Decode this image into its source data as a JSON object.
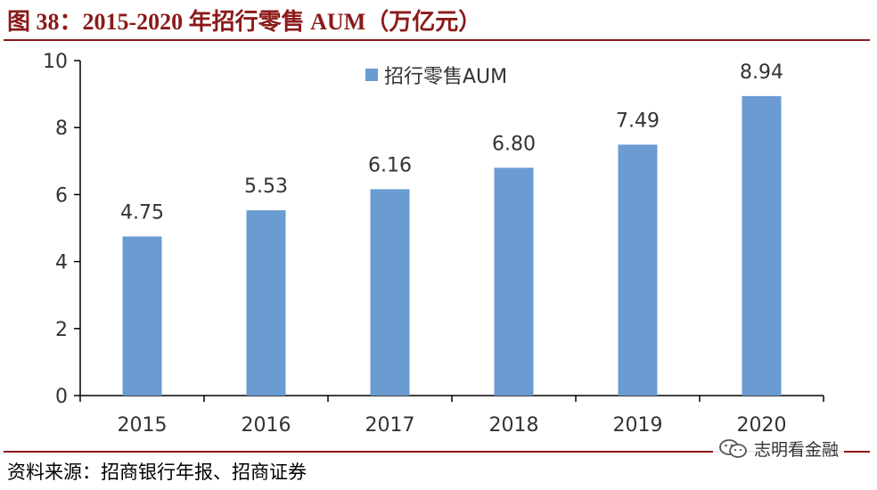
{
  "title": "图 38：2015-2020 年招行零售 AUM（万亿元）",
  "source": "资料来源：招商银行年报、招商证券",
  "watermark": "志明看金融",
  "chart_data": {
    "type": "bar",
    "categories": [
      "2015",
      "2016",
      "2017",
      "2018",
      "2019",
      "2020"
    ],
    "series": [
      {
        "name": "招行零售AUM",
        "values": [
          4.75,
          5.53,
          6.16,
          6.8,
          7.49,
          8.94
        ],
        "color": "#6a9bd1"
      }
    ],
    "data_labels": [
      "4.75",
      "5.53",
      "6.16",
      "6.80",
      "7.49",
      "8.94"
    ],
    "ylim": [
      0,
      10
    ],
    "yticks": [
      0,
      2,
      4,
      6,
      8,
      10
    ],
    "ytick_labels": [
      "0",
      "2",
      "4",
      "6",
      "8",
      "10"
    ],
    "legend": "top-center",
    "grid": false
  }
}
